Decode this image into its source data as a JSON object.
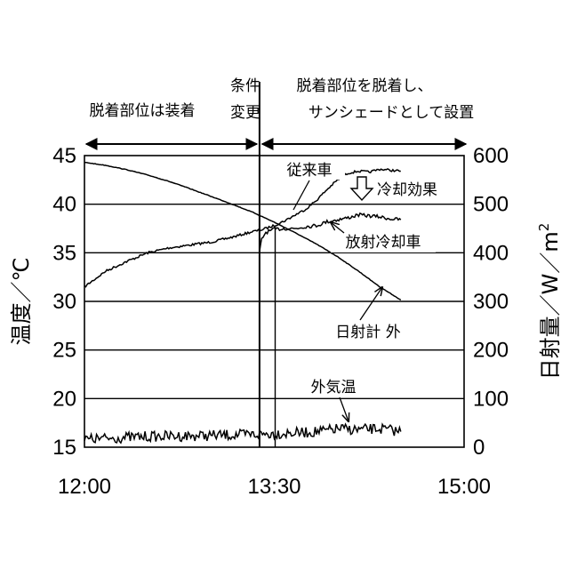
{
  "chart_data": {
    "type": "line",
    "x_ticks": [
      "12:00",
      "13:30",
      "15:00"
    ],
    "xlim": [
      "12:00",
      "15:00"
    ],
    "ylabel_left": "温度／℃",
    "ylim_left": [
      15,
      45
    ],
    "yticks_left": [
      15,
      20,
      25,
      30,
      35,
      40,
      45
    ],
    "ylabel_right": "日射量／W／m",
    "ylabel_right_superscript": "2",
    "ylim_right": [
      0,
      600
    ],
    "yticks_right": [
      0,
      100,
      200,
      300,
      400,
      500,
      600
    ],
    "grid": true,
    "phases": [
      {
        "label": "脱着部位は装着",
        "from": "12:00",
        "to": "13:23"
      },
      {
        "label_lines": [
          "脱着部位を脱着し、",
          "サンシェードとして設置"
        ],
        "from": "13:23",
        "to": "15:00"
      }
    ],
    "condition_change": {
      "label_lines": [
        "条件",
        "変更"
      ],
      "time": "13:23"
    },
    "annotations": {
      "conventional": "従来車",
      "cooling_effect": "冷却効果",
      "radiative": "放射冷却車",
      "solar": "日射計 外",
      "ambient": "外気温"
    },
    "series": [
      {
        "name": "従来車",
        "axis": "left",
        "noise": 0.12,
        "x": [
          "12:00",
          "12:10",
          "12:20",
          "12:30",
          "12:40",
          "12:50",
          "13:00",
          "13:10",
          "13:20",
          "13:23",
          "13:30",
          "13:35",
          "13:40",
          "13:45",
          "13:50",
          "13:55",
          "14:00",
          "14:05",
          "14:10",
          "14:15",
          "14:20",
          "14:25",
          "14:30"
        ],
        "y": [
          31.5,
          33.1,
          34.1,
          35.0,
          35.5,
          35.8,
          36.1,
          36.6,
          37.2,
          37.3,
          37.8,
          38.3,
          38.9,
          39.5,
          40.4,
          41.5,
          42.5,
          43.2,
          43.4,
          43.3,
          43.6,
          43.5,
          43.4
        ]
      },
      {
        "name": "放射冷却車",
        "axis": "left",
        "noise": 0.18,
        "x": [
          "13:23",
          "13:24",
          "13:26",
          "13:30",
          "13:35",
          "13:40",
          "13:45",
          "13:50",
          "13:55",
          "14:00",
          "14:05",
          "14:10",
          "14:15",
          "14:20",
          "14:25",
          "14:30"
        ],
        "y": [
          35.0,
          36.4,
          37.1,
          37.4,
          37.5,
          37.5,
          37.7,
          37.8,
          38.2,
          38.4,
          38.6,
          38.9,
          38.8,
          38.7,
          38.5,
          38.4
        ]
      },
      {
        "name": "日射計 外",
        "axis": "right",
        "noise": 0.5,
        "x": [
          "12:00",
          "12:10",
          "12:20",
          "12:30",
          "12:40",
          "12:50",
          "13:00",
          "13:10",
          "13:20",
          "13:30",
          "13:40",
          "13:50",
          "14:00",
          "14:10",
          "14:20",
          "14:30"
        ],
        "y": [
          586,
          580,
          571,
          560,
          547,
          532,
          516,
          500,
          483,
          463,
          441,
          418,
          392,
          362,
          330,
          303
        ]
      },
      {
        "name": "外気温",
        "axis": "left",
        "noise": 0.55,
        "x": [
          "12:00",
          "12:30",
          "13:00",
          "13:20",
          "13:30",
          "13:45",
          "13:55",
          "14:00",
          "14:10",
          "14:20",
          "14:30"
        ],
        "y": [
          15.8,
          16.1,
          16.2,
          16.3,
          16.4,
          16.5,
          16.7,
          16.9,
          16.8,
          16.9,
          16.6
        ]
      }
    ]
  }
}
